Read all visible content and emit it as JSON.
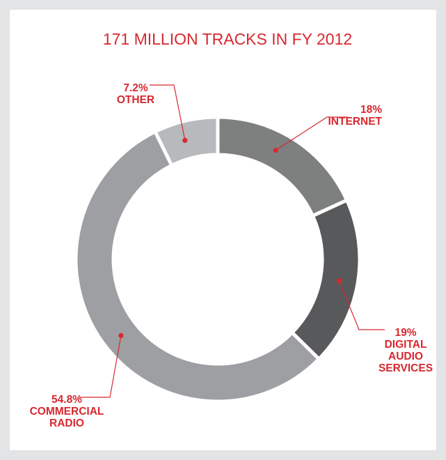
{
  "chart_data": {
    "type": "pie",
    "style": "donut",
    "title": "171 MILLION TRACKS IN FY 2012",
    "slices": [
      {
        "label": [
          "18%",
          "INTERNET"
        ],
        "value": 18.0,
        "color": "#7e807f"
      },
      {
        "label": [
          "19%",
          "DIGITAL",
          "AUDIO",
          "SERVICES"
        ],
        "value": 19.0,
        "color": "#58595b"
      },
      {
        "label": [
          "54.8%",
          "COMMERCIAL",
          "RADIO"
        ],
        "value": 54.8,
        "color": "#9d9fa2"
      },
      {
        "label": [
          "7.2%",
          "OTHER"
        ],
        "value": 7.2,
        "color": "#b7b9bc"
      }
    ],
    "legend": "none",
    "grid": false
  },
  "colors": {
    "accent": "#d7282f",
    "frame": "#e3e4e5",
    "background": "#ffffff"
  }
}
